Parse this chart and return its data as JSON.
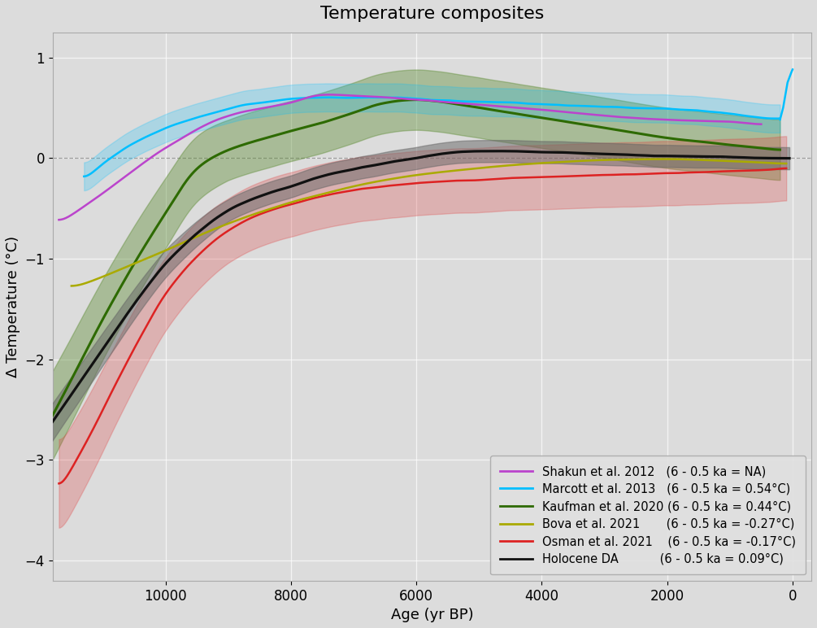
{
  "title": "Temperature composites",
  "xlabel": "Age (yr BP)",
  "ylabel": "Δ Temperature (°C)",
  "xlim": [
    11800,
    -300
  ],
  "ylim": [
    -4.2,
    1.25
  ],
  "xticks": [
    10000,
    8000,
    6000,
    4000,
    2000,
    0
  ],
  "yticks": [
    -4,
    -3,
    -2,
    -1,
    0,
    1
  ],
  "bg_color": "#dcdcdc",
  "legend_labels": [
    "Shakun et al. 2012   (6 - 0.5 ka = NA)",
    "Marcott et al. 2013   (6 - 0.5 ka = 0.54°C)",
    "Kaufman et al. 2020 (6 - 0.5 ka = 0.44°C)",
    "Bova et al. 2021       (6 - 0.5 ka = -0.27°C)",
    "Osman et al. 2021    (6 - 0.5 ka = -0.17°C)",
    "Holocene DA           (6 - 0.5 ka = 0.09°C)"
  ],
  "colors": {
    "shakun": "#bb44cc",
    "marcott": "#00bfff",
    "kaufman": "#2d6a00",
    "bova": "#aaaa00",
    "osman": "#dd2222",
    "holocene": "#111111"
  }
}
